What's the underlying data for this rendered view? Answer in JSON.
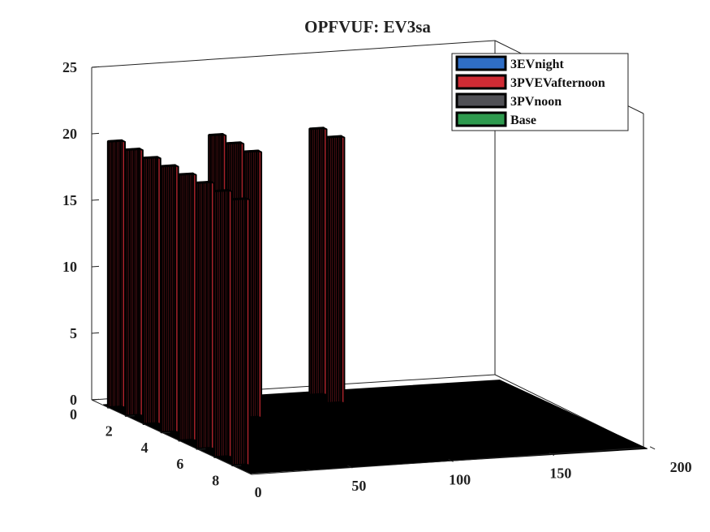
{
  "chart_data": {
    "type": "bar3d",
    "title": "OPFVUF: EV3sa",
    "xlabel": "",
    "ylabel": "",
    "zlabel": "",
    "x_ticks": [
      "0",
      "50",
      "100",
      "150",
      "200"
    ],
    "y_ticks": [
      "0",
      "2",
      "4",
      "6",
      "8"
    ],
    "z_ticks": [
      "0",
      "5",
      "10",
      "15",
      "20",
      "25"
    ],
    "xlim": [
      0,
      200
    ],
    "ylim": [
      0,
      9
    ],
    "zlim": [
      0,
      25
    ],
    "grid": false,
    "legend_position": "top-right",
    "colors": {
      "3EVnight": "#2f6ec6",
      "3PVEVafternoon": "#d02b34",
      "3PVnoon": "#505055",
      "Base": "#2e9a4e",
      "edge": "#000000",
      "floor": "#000000"
    },
    "series": [
      {
        "name": "3EVnight",
        "values": []
      },
      {
        "name": "3PVEVafternoon",
        "values": []
      },
      {
        "name": "3PVnoon",
        "values": []
      },
      {
        "name": "Base",
        "values": []
      }
    ],
    "panel_groups": [
      {
        "group": 1,
        "x_range": [
          0,
          7
        ],
        "rows": [
          1,
          2,
          3,
          4,
          5,
          6,
          7,
          8
        ],
        "value": 20
      },
      {
        "group": 2,
        "x_range": [
          50,
          57
        ],
        "rows": [
          1,
          2,
          3
        ],
        "value": 20
      },
      {
        "group": 3,
        "x_range": [
          100,
          107
        ],
        "rows": [
          1,
          2
        ],
        "value": 20
      }
    ]
  }
}
